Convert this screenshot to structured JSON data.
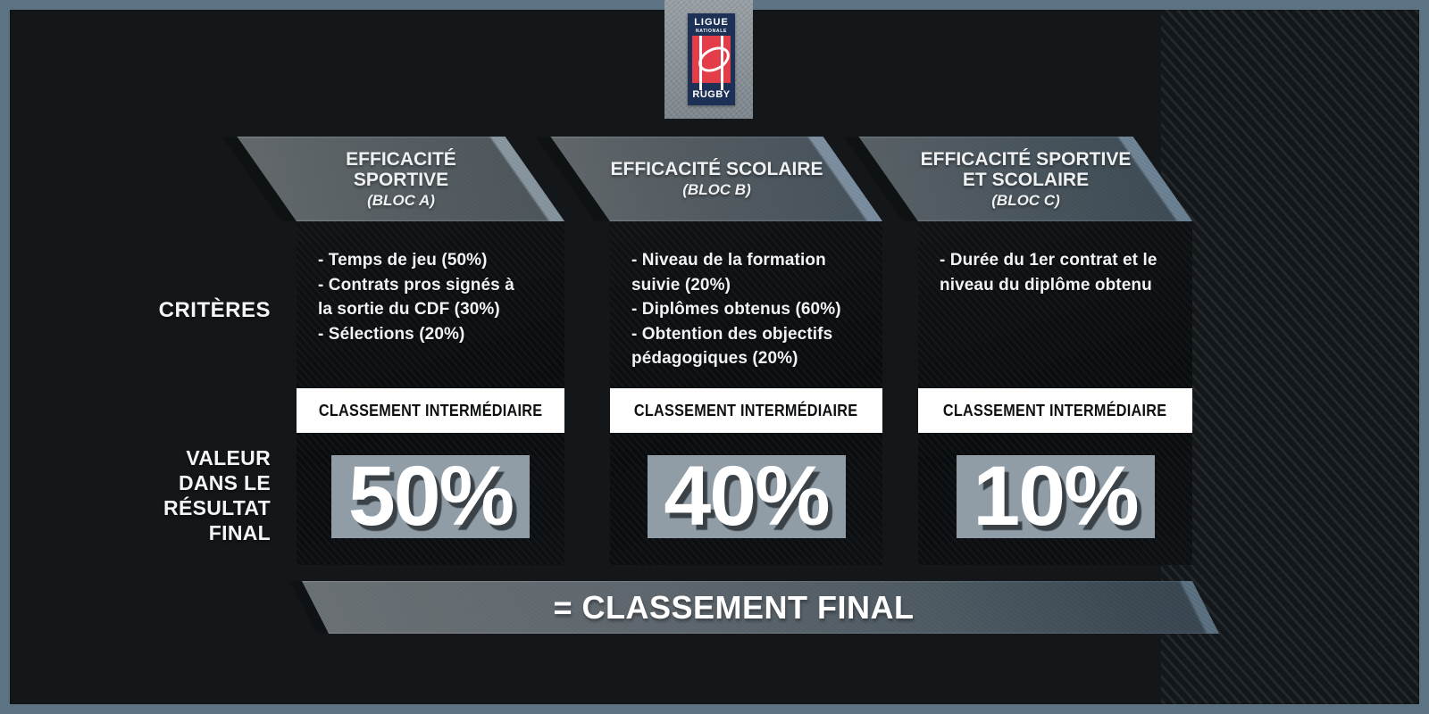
{
  "logo": {
    "top": "LIGUE",
    "middle": "NATIONALE",
    "bottom": "RUGBY"
  },
  "row_labels": {
    "criteria": "CRITÈRES",
    "final_value": "VALEUR\nDANS LE\nRÉSULTAT\nFINAL"
  },
  "columns": [
    {
      "title": "EFFICACITÉ SPORTIVE",
      "subtitle": "(BLOC A)",
      "criteria": "- Temps de jeu (50%)\n- Contrats pros signés à\nla sortie du CDF (30%)\n- Sélections (20%)",
      "intermediate_label": "CLASSEMENT INTERMÉDIAIRE",
      "final_weight": "50%"
    },
    {
      "title": "EFFICACITÉ SCOLAIRE",
      "subtitle": "(BLOC B)",
      "criteria": "- Niveau de la formation\nsuivie (20%)\n- Diplômes obtenus (60%)\n- Obtention des objectifs\npédagogiques (20%)",
      "intermediate_label": "CLASSEMENT INTERMÉDIAIRE",
      "final_weight": "40%"
    },
    {
      "title": "EFFICACITÉ SPORTIVE\nET SCOLAIRE",
      "subtitle": "(BLOC C)",
      "criteria": "- Durée du 1er contrat et le\nniveau du diplôme obtenu",
      "intermediate_label": "CLASSEMENT INTERMÉDIAIRE",
      "final_weight": "10%"
    }
  ],
  "footer": {
    "final_label": "= CLASSEMENT FINAL"
  },
  "colors": {
    "frame": "#5c7383",
    "background": "#14171a",
    "logo_navy": "#1d3156",
    "logo_red": "#e23d49",
    "header_gray": "#97a3ab",
    "box_black": "#0b0e10",
    "band_white": "#ffffff",
    "value_gray": "#909da6",
    "banner_left": "#a9b2b7",
    "banner_right": "#566b7b"
  }
}
